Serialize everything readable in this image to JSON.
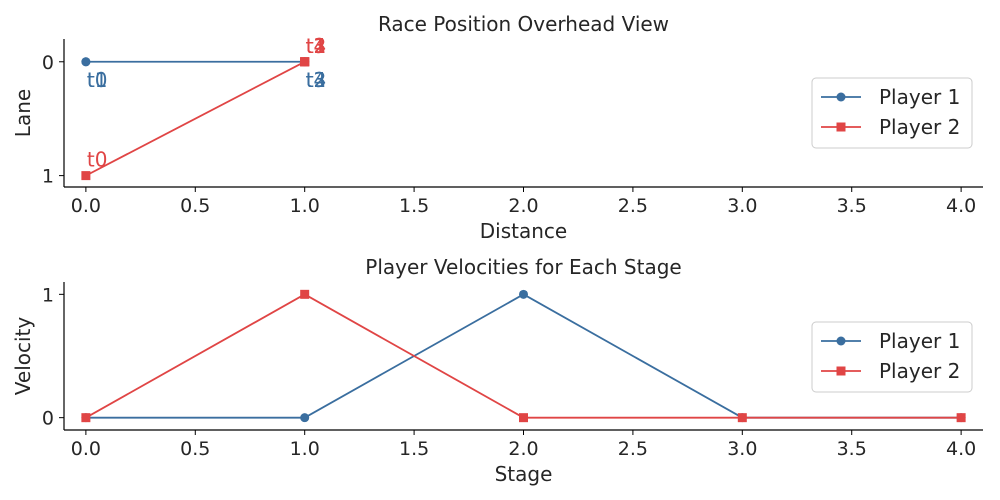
{
  "colors": {
    "player1": "#3a6e9f",
    "player2": "#e04545",
    "axis": "#000000",
    "text": "#262626",
    "legend_border": "#cccccc"
  },
  "chart_data": [
    {
      "type": "line",
      "title": "Race Position Overhead View",
      "xlabel": "Distance",
      "ylabel": "Lane",
      "xlim": [
        -0.1,
        4.1
      ],
      "ylim": [
        1.1,
        -0.2
      ],
      "y_inverted": true,
      "xticks": [
        0.0,
        0.5,
        1.0,
        1.5,
        2.0,
        2.5,
        3.0,
        3.5,
        4.0
      ],
      "xtick_labels": [
        "0.0",
        "0.5",
        "1.0",
        "1.5",
        "2.0",
        "2.5",
        "3.0",
        "3.5",
        "4.0"
      ],
      "yticks": [
        0,
        1
      ],
      "ytick_labels": [
        "0",
        "1"
      ],
      "grid": false,
      "legend_position": "right",
      "series": [
        {
          "name": "Player 1",
          "marker": "circle",
          "color_key": "player1",
          "x": [
            0,
            0,
            1,
            1,
            1
          ],
          "y": [
            0,
            0,
            0,
            0,
            0
          ],
          "labels": [
            "t0",
            "t1",
            "t2",
            "t3",
            "t4"
          ],
          "label_side": "below"
        },
        {
          "name": "Player 2",
          "marker": "square",
          "color_key": "player2",
          "x": [
            0,
            1,
            1,
            1,
            1
          ],
          "y": [
            1,
            0,
            0,
            0,
            0
          ],
          "labels": [
            "t0",
            "t1",
            "t2",
            "t3",
            "t4"
          ],
          "label_side": "above"
        }
      ]
    },
    {
      "type": "line",
      "title": "Player Velocities for Each Stage",
      "xlabel": "Stage",
      "ylabel": "Velocity",
      "xlim": [
        -0.1,
        4.1
      ],
      "ylim": [
        -0.1,
        1.1
      ],
      "y_inverted": false,
      "xticks": [
        0.0,
        0.5,
        1.0,
        1.5,
        2.0,
        2.5,
        3.0,
        3.5,
        4.0
      ],
      "xtick_labels": [
        "0.0",
        "0.5",
        "1.0",
        "1.5",
        "2.0",
        "2.5",
        "3.0",
        "3.5",
        "4.0"
      ],
      "yticks": [
        0,
        1
      ],
      "ytick_labels": [
        "0",
        "1"
      ],
      "grid": false,
      "legend_position": "right",
      "series": [
        {
          "name": "Player 1",
          "marker": "circle",
          "color_key": "player1",
          "x": [
            0,
            1,
            2,
            3,
            4
          ],
          "y": [
            0,
            0,
            1,
            0,
            0
          ]
        },
        {
          "name": "Player 2",
          "marker": "square",
          "color_key": "player2",
          "x": [
            0,
            1,
            2,
            3,
            4
          ],
          "y": [
            0,
            1,
            0,
            0,
            0
          ]
        }
      ]
    }
  ]
}
